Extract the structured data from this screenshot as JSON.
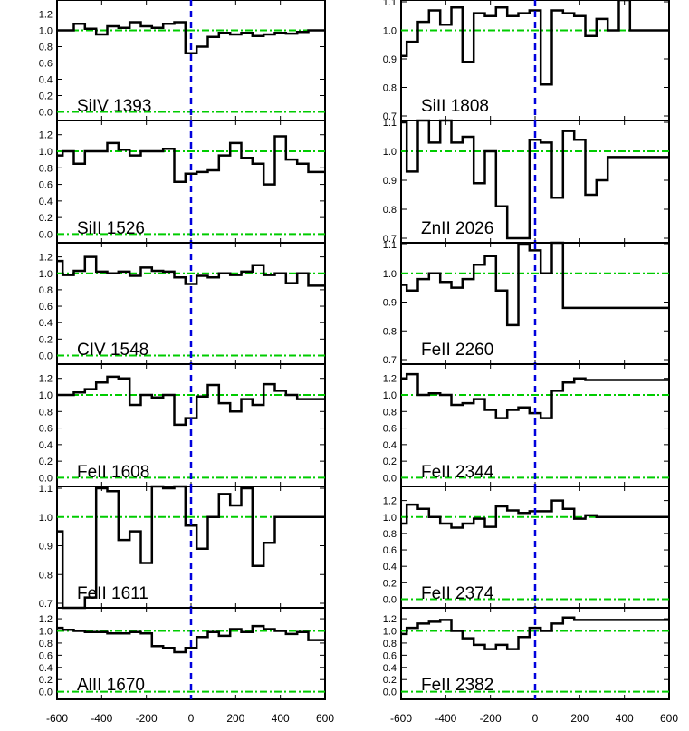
{
  "colors": {
    "spectrum": "#000000",
    "zero_velocity_line": "#0000dd",
    "continuum_line": "#00cc00",
    "frame": "#000000"
  },
  "x_axis": {
    "range": [
      -600,
      600
    ],
    "tick_labels": [
      "-600",
      "-400",
      "-200",
      "0",
      "200",
      "400",
      "600"
    ],
    "ticks": [
      -600,
      -400,
      -200,
      0,
      200,
      400,
      600
    ]
  },
  "chart_data": [
    {
      "type": "line",
      "label": "SiIV 1393",
      "column": "left",
      "ylim": [
        -0.05,
        1.35
      ],
      "ytick_labels": [
        "0.0",
        "0.2",
        "0.4",
        "0.6",
        "0.8",
        "1.0",
        "1.2"
      ],
      "yticks": [
        0,
        0.2,
        0.4,
        0.6,
        0.8,
        1.0,
        1.2
      ],
      "continuum": [
        0,
        1.0
      ],
      "x": [
        -600,
        -550,
        -500,
        -450,
        -400,
        -350,
        -300,
        -250,
        -200,
        -150,
        -100,
        -50,
        0,
        50,
        100,
        150,
        200,
        250,
        300,
        350,
        400,
        450,
        500,
        550,
        600
      ],
      "y": [
        1.0,
        1.0,
        1.08,
        1.02,
        0.95,
        1.05,
        1.03,
        1.1,
        1.05,
        1.03,
        1.08,
        1.1,
        0.72,
        0.8,
        0.92,
        0.97,
        0.95,
        0.97,
        0.93,
        0.95,
        0.97,
        0.96,
        0.98,
        1.0,
        1.0
      ]
    },
    {
      "type": "line",
      "label": "SiII 1526",
      "column": "left",
      "ylim": [
        -0.05,
        1.35
      ],
      "ytick_labels": [
        "0.0",
        "0.2",
        "0.4",
        "0.6",
        "0.8",
        "1.0",
        "1.2"
      ],
      "yticks": [
        0,
        0.2,
        0.4,
        0.6,
        0.8,
        1.0,
        1.2
      ],
      "continuum": [
        0,
        1.0
      ],
      "x": [
        -600,
        -550,
        -500,
        -450,
        -400,
        -350,
        -300,
        -250,
        -200,
        -150,
        -100,
        -50,
        0,
        50,
        100,
        150,
        200,
        250,
        300,
        350,
        400,
        450,
        500,
        550,
        600
      ],
      "y": [
        0.95,
        1.0,
        0.85,
        1.0,
        1.0,
        1.1,
        1.02,
        0.95,
        1.0,
        1.0,
        1.03,
        0.63,
        0.73,
        0.75,
        0.77,
        0.95,
        1.1,
        0.92,
        0.85,
        0.6,
        1.18,
        0.9,
        0.85,
        0.75,
        0.75
      ]
    },
    {
      "type": "line",
      "label": "CIV 1548",
      "column": "left",
      "ylim": [
        -0.05,
        1.35
      ],
      "ytick_labels": [
        "0.0",
        "0.2",
        "0.4",
        "0.6",
        "0.8",
        "1.0",
        "1.2"
      ],
      "yticks": [
        0,
        0.2,
        0.4,
        0.6,
        0.8,
        1.0,
        1.2
      ],
      "continuum": [
        0,
        1.0
      ],
      "x": [
        -600,
        -550,
        -500,
        -450,
        -400,
        -350,
        -300,
        -250,
        -200,
        -150,
        -100,
        -50,
        0,
        50,
        100,
        150,
        200,
        250,
        300,
        350,
        400,
        450,
        500,
        550,
        600
      ],
      "y": [
        1.15,
        0.98,
        1.03,
        1.2,
        1.02,
        1.0,
        1.02,
        0.97,
        1.07,
        1.03,
        1.02,
        0.95,
        0.87,
        0.97,
        0.95,
        1.0,
        0.98,
        1.02,
        1.1,
        0.98,
        1.0,
        0.88,
        1.0,
        0.85,
        0.85
      ]
    },
    {
      "type": "line",
      "label": "FeII 1608",
      "column": "left",
      "ylim": [
        -0.05,
        1.35
      ],
      "ytick_labels": [
        "0.0",
        "0.2",
        "0.4",
        "0.6",
        "0.8",
        "1.0",
        "1.2"
      ],
      "yticks": [
        0,
        0.2,
        0.4,
        0.6,
        0.8,
        1.0,
        1.2
      ],
      "continuum": [
        0,
        1.0
      ],
      "x": [
        -600,
        -550,
        -500,
        -450,
        -400,
        -350,
        -300,
        -250,
        -200,
        -150,
        -100,
        -50,
        0,
        50,
        100,
        150,
        200,
        250,
        300,
        350,
        400,
        450,
        500,
        550,
        600
      ],
      "y": [
        1.0,
        1.0,
        1.03,
        1.07,
        1.15,
        1.22,
        1.2,
        0.88,
        1.0,
        0.97,
        1.0,
        0.64,
        0.72,
        0.98,
        1.12,
        0.9,
        0.8,
        0.95,
        0.88,
        1.13,
        1.05,
        1.0,
        0.95,
        0.95,
        0.95
      ]
    },
    {
      "type": "line",
      "label": "FeII 1611",
      "column": "left",
      "ylim": [
        0.7,
        1.1
      ],
      "ytick_labels": [
        "0.7",
        "0.8",
        "0.9",
        "1.0",
        "1.1"
      ],
      "yticks": [
        0.7,
        0.8,
        0.9,
        1.0,
        1.1
      ],
      "continuum": [
        1.0
      ],
      "x": [
        -600,
        -550,
        -500,
        -450,
        -400,
        -350,
        -300,
        -250,
        -200,
        -150,
        -100,
        -50,
        0,
        50,
        100,
        150,
        200,
        250,
        300,
        350,
        400,
        450,
        500,
        550,
        600
      ],
      "y": [
        0.95,
        0.55,
        0.55,
        0.72,
        1.1,
        1.09,
        0.92,
        0.95,
        0.84,
        1.13,
        1.1,
        1.2,
        0.97,
        0.89,
        1.0,
        1.08,
        1.04,
        1.1,
        0.83,
        0.91,
        1.0,
        1.0,
        1.0,
        1.0,
        1.0
      ]
    },
    {
      "type": "line",
      "label": "AlII 1670",
      "column": "left",
      "ylim": [
        -0.05,
        1.35
      ],
      "ytick_labels": [
        "0.0",
        "0.2",
        "0.4",
        "0.6",
        "0.8",
        "1.0",
        "1.2"
      ],
      "yticks": [
        0,
        0.2,
        0.4,
        0.6,
        0.8,
        1.0,
        1.2
      ],
      "continuum": [
        0,
        1.0
      ],
      "x": [
        -600,
        -550,
        -500,
        -450,
        -400,
        -350,
        -300,
        -250,
        -200,
        -150,
        -100,
        -50,
        0,
        50,
        100,
        150,
        200,
        250,
        300,
        350,
        400,
        450,
        500,
        550,
        600
      ],
      "y": [
        1.05,
        1.02,
        1.0,
        0.98,
        0.98,
        0.96,
        0.96,
        0.98,
        0.96,
        0.75,
        0.72,
        0.65,
        0.72,
        0.9,
        0.98,
        0.92,
        1.03,
        0.98,
        1.08,
        1.03,
        1.0,
        0.95,
        0.98,
        0.85,
        0.85
      ]
    },
    {
      "type": "line",
      "label": "SiII 1808",
      "column": "right",
      "ylim": [
        0.7,
        1.1
      ],
      "ytick_labels": [
        "0.7",
        "0.8",
        "0.9",
        "1.0",
        "1.1"
      ],
      "yticks": [
        0.7,
        0.8,
        0.9,
        1.0,
        1.1
      ],
      "continuum": [
        1.0
      ],
      "x": [
        -600,
        -550,
        -500,
        -450,
        -400,
        -350,
        -300,
        -250,
        -200,
        -150,
        -100,
        -50,
        0,
        50,
        100,
        150,
        200,
        250,
        300,
        350,
        400,
        450,
        500,
        550,
        600
      ],
      "y": [
        0.91,
        0.96,
        1.03,
        1.07,
        1.02,
        1.08,
        0.89,
        1.06,
        1.05,
        1.08,
        1.05,
        1.06,
        1.07,
        0.81,
        1.07,
        1.06,
        1.05,
        0.98,
        1.04,
        1.0,
        1.2,
        1.0,
        1.0,
        1.0,
        1.0
      ]
    },
    {
      "type": "line",
      "label": "ZnII 2026",
      "column": "right",
      "ylim": [
        0.7,
        1.1
      ],
      "ytick_labels": [
        "0.7",
        "0.8",
        "0.9",
        "1.0",
        "1.1"
      ],
      "yticks": [
        0.7,
        0.8,
        0.9,
        1.0,
        1.1
      ],
      "continuum": [
        1.0
      ],
      "x": [
        -600,
        -550,
        -500,
        -450,
        -400,
        -350,
        -300,
        -250,
        -200,
        -150,
        -100,
        -50,
        0,
        50,
        100,
        150,
        200,
        250,
        300,
        350,
        400,
        450,
        500,
        550,
        600
      ],
      "y": [
        1.1,
        0.93,
        1.2,
        1.03,
        1.3,
        1.03,
        1.05,
        0.89,
        1.0,
        0.81,
        0.7,
        0.7,
        1.04,
        1.03,
        0.84,
        1.07,
        1.04,
        0.85,
        0.9,
        0.98,
        0.98,
        0.98,
        0.98,
        0.98,
        0.98
      ]
    },
    {
      "type": "line",
      "label": "FeII 2260",
      "column": "right",
      "ylim": [
        0.7,
        1.1
      ],
      "ytick_labels": [
        "0.7",
        "0.8",
        "0.9",
        "1.0",
        "1.1"
      ],
      "yticks": [
        0.7,
        0.8,
        0.9,
        1.0,
        1.1
      ],
      "continuum": [
        1.0
      ],
      "x": [
        -600,
        -550,
        -500,
        -450,
        -400,
        -350,
        -300,
        -250,
        -200,
        -150,
        -100,
        -50,
        0,
        50,
        100,
        150,
        200,
        250,
        300,
        350,
        400,
        450,
        500,
        550,
        600
      ],
      "y": [
        0.96,
        0.94,
        0.98,
        1.0,
        0.97,
        0.95,
        0.98,
        1.03,
        1.06,
        0.94,
        0.82,
        1.1,
        1.08,
        1.0,
        1.2,
        0.88,
        0.88,
        0.88,
        0.88,
        0.88,
        0.88,
        0.88,
        0.88,
        0.88,
        0.88
      ]
    },
    {
      "type": "line",
      "label": "FeII 2344",
      "column": "right",
      "ylim": [
        -0.05,
        1.35
      ],
      "ytick_labels": [
        "0.0",
        "0.2",
        "0.4",
        "0.6",
        "0.8",
        "1.0",
        "1.2"
      ],
      "yticks": [
        0,
        0.2,
        0.4,
        0.6,
        0.8,
        1.0,
        1.2
      ],
      "continuum": [
        0,
        1.0
      ],
      "x": [
        -600,
        -550,
        -500,
        -450,
        -400,
        -350,
        -300,
        -250,
        -200,
        -150,
        -100,
        -50,
        0,
        50,
        100,
        150,
        200,
        250,
        300,
        350,
        400,
        450,
        500,
        550,
        600
      ],
      "y": [
        1.2,
        1.25,
        1.0,
        1.02,
        1.0,
        0.88,
        0.9,
        0.95,
        0.82,
        0.72,
        0.82,
        0.85,
        0.78,
        0.72,
        1.05,
        1.15,
        1.2,
        1.18,
        1.18,
        1.18,
        1.18,
        1.18,
        1.18,
        1.18,
        1.18
      ]
    },
    {
      "type": "line",
      "label": "FeII 2374",
      "column": "right",
      "ylim": [
        -0.05,
        1.35
      ],
      "ytick_labels": [
        "0.0",
        "0.2",
        "0.4",
        "0.6",
        "0.8",
        "1.0",
        "1.2"
      ],
      "yticks": [
        0,
        0.2,
        0.4,
        0.6,
        0.8,
        1.0,
        1.2
      ],
      "continuum": [
        0,
        1.0
      ],
      "x": [
        -600,
        -550,
        -500,
        -450,
        -400,
        -350,
        -300,
        -250,
        -200,
        -150,
        -100,
        -50,
        0,
        50,
        100,
        150,
        200,
        250,
        300,
        350,
        400,
        450,
        500,
        550,
        600
      ],
      "y": [
        0.92,
        1.15,
        1.1,
        1.0,
        0.92,
        0.87,
        0.92,
        0.98,
        0.88,
        1.13,
        1.08,
        1.05,
        1.07,
        1.07,
        1.2,
        1.1,
        0.98,
        1.02,
        1.0,
        1.0,
        1.0,
        1.0,
        1.0,
        1.0,
        1.0
      ]
    },
    {
      "type": "line",
      "label": "FeII 2382",
      "column": "right",
      "ylim": [
        -0.05,
        1.35
      ],
      "ytick_labels": [
        "0.0",
        "0.2",
        "0.4",
        "0.6",
        "0.8",
        "1.0",
        "1.2"
      ],
      "yticks": [
        0,
        0.2,
        0.4,
        0.6,
        0.8,
        1.0,
        1.2
      ],
      "continuum": [
        0,
        1.0
      ],
      "x": [
        -600,
        -550,
        -500,
        -450,
        -400,
        -350,
        -300,
        -250,
        -200,
        -150,
        -100,
        -50,
        0,
        50,
        100,
        150,
        200,
        250,
        300,
        350,
        400,
        450,
        500,
        550,
        600
      ],
      "y": [
        0.95,
        1.05,
        1.12,
        1.15,
        1.18,
        1.0,
        0.88,
        0.77,
        0.7,
        0.77,
        0.7,
        0.9,
        1.05,
        1.0,
        1.12,
        1.22,
        1.18,
        1.18,
        1.18,
        1.18,
        1.18,
        1.18,
        1.18,
        1.18,
        1.18
      ]
    }
  ]
}
